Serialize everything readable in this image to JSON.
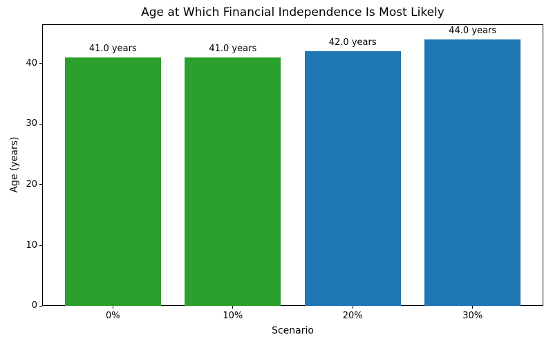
{
  "chart_data": {
    "type": "bar",
    "title": "Age at Which Financial Independence Is Most Likely",
    "xlabel": "Scenario",
    "ylabel": "Age (years)",
    "categories": [
      "0%",
      "10%",
      "20%",
      "30%"
    ],
    "values": [
      41.0,
      41.0,
      42.0,
      44.0
    ],
    "bar_labels": [
      "41.0 years",
      "41.0 years",
      "42.0 years",
      "44.0 years"
    ],
    "bar_colors": [
      "#2ca02c",
      "#2ca02c",
      "#1f77b4",
      "#1f77b4"
    ],
    "ylim": [
      0,
      46.5
    ],
    "yticks": [
      "0",
      "10",
      "20",
      "30",
      "40"
    ],
    "bar_width_fraction": 0.8,
    "grid": false,
    "legend_position": "none",
    "spine_color": "#000000",
    "background_color": "#ffffff"
  }
}
